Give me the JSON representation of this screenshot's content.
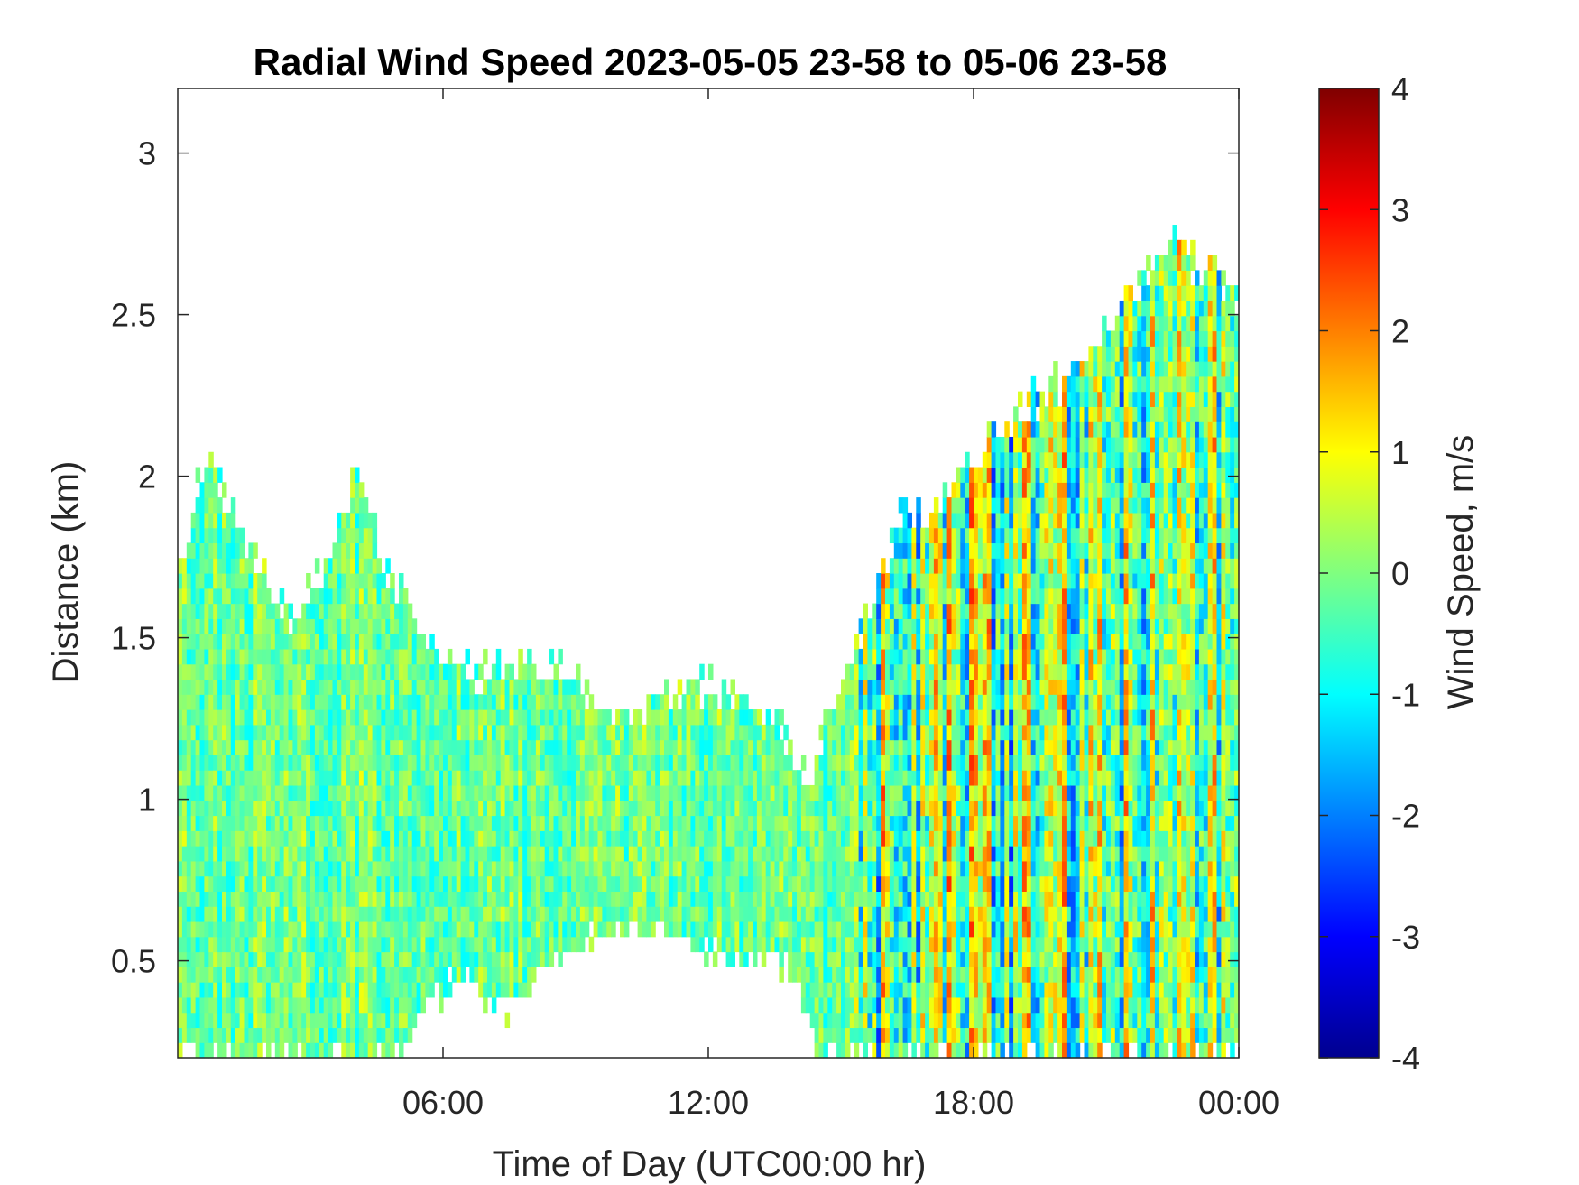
{
  "chart_data": {
    "type": "heatmap",
    "title": "Radial Wind Speed 2023-05-05 23-58 to 05-06 23-58",
    "xlabel": "Time of Day (UTC00:00 hr)",
    "ylabel": "Distance (km)",
    "xlim_hours": [
      0,
      24
    ],
    "ylim_km": [
      0.2,
      3.2
    ],
    "x_ticks": [
      {
        "hour": 6,
        "label": "06:00"
      },
      {
        "hour": 12,
        "label": "12:00"
      },
      {
        "hour": 18,
        "label": "18:00"
      },
      {
        "hour": 24,
        "label": "00:00"
      }
    ],
    "y_ticks": [
      {
        "value": 0.5,
        "label": "0.5"
      },
      {
        "value": 1,
        "label": "1"
      },
      {
        "value": 1.5,
        "label": "1.5"
      },
      {
        "value": 2,
        "label": "2"
      },
      {
        "value": 2.5,
        "label": "2.5"
      },
      {
        "value": 3,
        "label": "3"
      }
    ],
    "colorbar": {
      "label": "Wind Speed, m/s",
      "colormap": "jet",
      "range": [
        -4,
        4
      ],
      "ticks": [
        "4",
        "3",
        "2",
        "1",
        "0",
        "-1",
        "-2",
        "-3",
        "-4"
      ],
      "tick_values": [
        4,
        3,
        2,
        1,
        0,
        -1,
        -2,
        -3,
        -4
      ]
    },
    "data_coverage_top_km": [
      {
        "hour": 0.1,
        "top": 1.75
      },
      {
        "hour": 0.7,
        "top": 2.1
      },
      {
        "hour": 1.5,
        "top": 1.8
      },
      {
        "hour": 2.5,
        "top": 1.55
      },
      {
        "hour": 3.5,
        "top": 1.75
      },
      {
        "hour": 4.0,
        "top": 2.05
      },
      {
        "hour": 4.6,
        "top": 1.75
      },
      {
        "hour": 5.2,
        "top": 1.62
      },
      {
        "hour": 6.0,
        "top": 1.42
      },
      {
        "hour": 7.0,
        "top": 1.4
      },
      {
        "hour": 8.0,
        "top": 1.42
      },
      {
        "hour": 9.0,
        "top": 1.38
      },
      {
        "hour": 10.0,
        "top": 1.25
      },
      {
        "hour": 11.0,
        "top": 1.3
      },
      {
        "hour": 12.0,
        "top": 1.35
      },
      {
        "hour": 13.0,
        "top": 1.3
      },
      {
        "hour": 13.8,
        "top": 1.18
      },
      {
        "hour": 14.2,
        "top": 1.05
      },
      {
        "hour": 14.8,
        "top": 1.3
      },
      {
        "hour": 15.5,
        "top": 1.55
      },
      {
        "hour": 16.0,
        "top": 1.75
      },
      {
        "hour": 16.5,
        "top": 1.9
      },
      {
        "hour": 17.0,
        "top": 1.88
      },
      {
        "hour": 18.0,
        "top": 2.08
      },
      {
        "hour": 19.0,
        "top": 2.2
      },
      {
        "hour": 20.0,
        "top": 2.3
      },
      {
        "hour": 21.0,
        "top": 2.45
      },
      {
        "hour": 21.8,
        "top": 2.62
      },
      {
        "hour": 22.5,
        "top": 2.7
      },
      {
        "hour": 23.3,
        "top": 2.65
      },
      {
        "hour": 24.0,
        "top": 2.55
      }
    ],
    "data_coverage_bottom_km": [
      {
        "hour": 0.0,
        "bottom": 0.2
      },
      {
        "hour": 5.0,
        "bottom": 0.2
      },
      {
        "hour": 5.5,
        "bottom": 0.35
      },
      {
        "hour": 6.5,
        "bottom": 0.45
      },
      {
        "hour": 7.5,
        "bottom": 0.35
      },
      {
        "hour": 8.5,
        "bottom": 0.5
      },
      {
        "hour": 9.5,
        "bottom": 0.58
      },
      {
        "hour": 10.5,
        "bottom": 0.6
      },
      {
        "hour": 11.5,
        "bottom": 0.55
      },
      {
        "hour": 12.5,
        "bottom": 0.5
      },
      {
        "hour": 13.5,
        "bottom": 0.5
      },
      {
        "hour": 14.0,
        "bottom": 0.45
      },
      {
        "hour": 14.5,
        "bottom": 0.2
      },
      {
        "hour": 24.0,
        "bottom": 0.2
      }
    ],
    "typical_speed_ranges_m_s": [
      {
        "hours": [
          0,
          14.5
        ],
        "min": -1,
        "max": 1
      },
      {
        "hours": [
          15.3,
          24
        ],
        "min": -3,
        "max": 3.5
      }
    ],
    "grid": false
  }
}
